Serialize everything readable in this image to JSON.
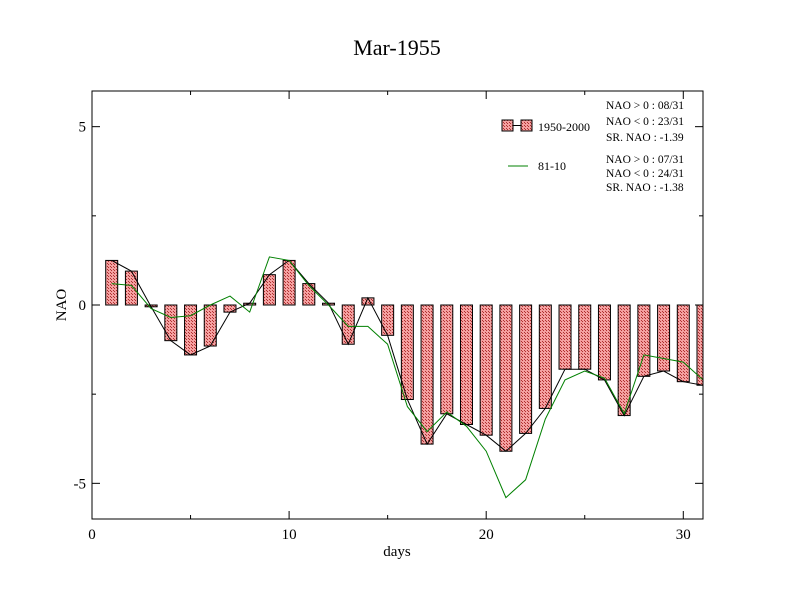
{
  "chart_data": {
    "type": "bar",
    "title": "Mar-1955",
    "xlabel": "days",
    "ylabel": "NAO",
    "xlim": [
      0,
      31
    ],
    "ylim": [
      -6,
      6
    ],
    "x_ticks": [
      {
        "value": 0,
        "label": "0"
      },
      {
        "value": 10,
        "label": "10"
      },
      {
        "value": 20,
        "label": "20"
      },
      {
        "value": 30,
        "label": "30"
      }
    ],
    "y_ticks": [
      {
        "value": 5,
        "label": "5"
      },
      {
        "value": 0,
        "label": "0"
      },
      {
        "value": -5,
        "label": "-5"
      }
    ],
    "x": [
      1,
      2,
      3,
      4,
      5,
      6,
      7,
      8,
      9,
      10,
      11,
      12,
      13,
      14,
      15,
      16,
      17,
      18,
      19,
      20,
      21,
      22,
      23,
      24,
      25,
      26,
      27,
      28,
      29,
      30,
      31
    ],
    "series": [
      {
        "name": "1950-2000",
        "style": "bar",
        "color": "#f08080",
        "values": [
          1.25,
          0.95,
          -0.05,
          -1.0,
          -1.4,
          -1.15,
          -0.2,
          0.05,
          0.85,
          1.25,
          0.6,
          0.05,
          -1.1,
          0.2,
          -0.85,
          -2.65,
          -3.9,
          -3.05,
          -3.35,
          -3.65,
          -4.1,
          -3.6,
          -2.9,
          -1.8,
          -1.8,
          -2.1,
          -3.1,
          -2.0,
          -1.85,
          -2.15,
          -2.25
        ]
      },
      {
        "name": "81-10",
        "style": "line",
        "color": "#008000",
        "values": [
          0.6,
          0.55,
          -0.1,
          -0.35,
          -0.3,
          0.0,
          0.25,
          -0.2,
          1.35,
          1.25,
          0.55,
          0.0,
          -0.6,
          -0.6,
          -1.1,
          -2.85,
          -3.55,
          -3.0,
          -3.4,
          -4.1,
          -5.4,
          -4.9,
          -3.2,
          -2.1,
          -1.85,
          -2.05,
          -3.05,
          -1.4,
          -1.5,
          -1.6,
          -2.1
        ]
      }
    ],
    "legend": {
      "placement": "top-right",
      "stats_1950_2000": [
        "NAO > 0 : 08/31",
        "NAO < 0 : 23/31",
        "SR. NAO : -1.39"
      ],
      "stats_81_10": [
        "NAO > 0 : 07/31",
        "NAO < 0 : 24/31",
        "SR. NAO : -1.38"
      ]
    },
    "grid": false
  }
}
